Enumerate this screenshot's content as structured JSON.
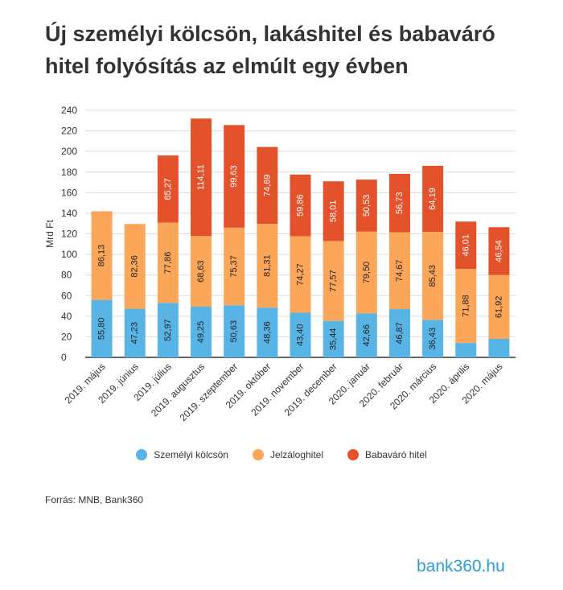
{
  "title": "Új személyi kölcsön, lakáshitel és babaváró hitel folyósítás az elmúlt egy évben",
  "source": "Forrás: MNB, Bank360",
  "logo_text": "bank360.hu",
  "colors": {
    "szemelyi": "#58b4e5",
    "jelzalog": "#fca65a",
    "babavaro": "#e3522b",
    "grid": "#dddddd",
    "axis": "#333333",
    "logo": "#2a9fd6"
  },
  "chart_data": {
    "type": "bar",
    "stacked": true,
    "ylabel": "Mrd Ft",
    "xlabel": "",
    "ylim": [
      0,
      240
    ],
    "yticks": [
      0,
      20,
      40,
      60,
      80,
      100,
      120,
      140,
      160,
      180,
      200,
      220,
      240
    ],
    "grid": true,
    "legend_position": "bottom",
    "categories": [
      "2019. május",
      "2019. június",
      "2019. július",
      "2019. augusztus",
      "2019. szeptember",
      "2019. október",
      "2019. november",
      "2019. december",
      "2020. január",
      "2020. február",
      "2020. március",
      "2020. április",
      "2020. május"
    ],
    "series": [
      {
        "name": "Személyi kölcsön",
        "values": [
          55.8,
          47.23,
          52.97,
          49.25,
          50.63,
          48.36,
          43.4,
          35.44,
          42.66,
          46.87,
          36.43,
          14.0,
          18.0
        ],
        "labels": [
          "55,80",
          "47,23",
          "52,97",
          "49,25",
          "50,63",
          "48,36",
          "43,40",
          "35,44",
          "42,66",
          "46,87",
          "36,43",
          "",
          ""
        ]
      },
      {
        "name": "Jelzáloghitel",
        "values": [
          86.13,
          82.36,
          77.86,
          68.63,
          75.37,
          81.31,
          74.27,
          77.57,
          79.5,
          74.67,
          85.43,
          71.88,
          61.92
        ],
        "labels": [
          "86,13",
          "82,36",
          "77,86",
          "68,63",
          "75,37",
          "81,31",
          "74,27",
          "77,57",
          "79,50",
          "74,67",
          "85,43",
          "71,88",
          "61,92"
        ]
      },
      {
        "name": "Babaváró hitel",
        "values": [
          0,
          0,
          65.27,
          114.11,
          99.63,
          74.69,
          59.86,
          58.01,
          50.53,
          56.73,
          64.19,
          46.01,
          46.54
        ],
        "labels": [
          "",
          "",
          "65,27",
          "114,11",
          "99,63",
          "74,69",
          "59,86",
          "58,01",
          "50,53",
          "56,73",
          "64,19",
          "46,01",
          "46,54"
        ]
      }
    ]
  }
}
